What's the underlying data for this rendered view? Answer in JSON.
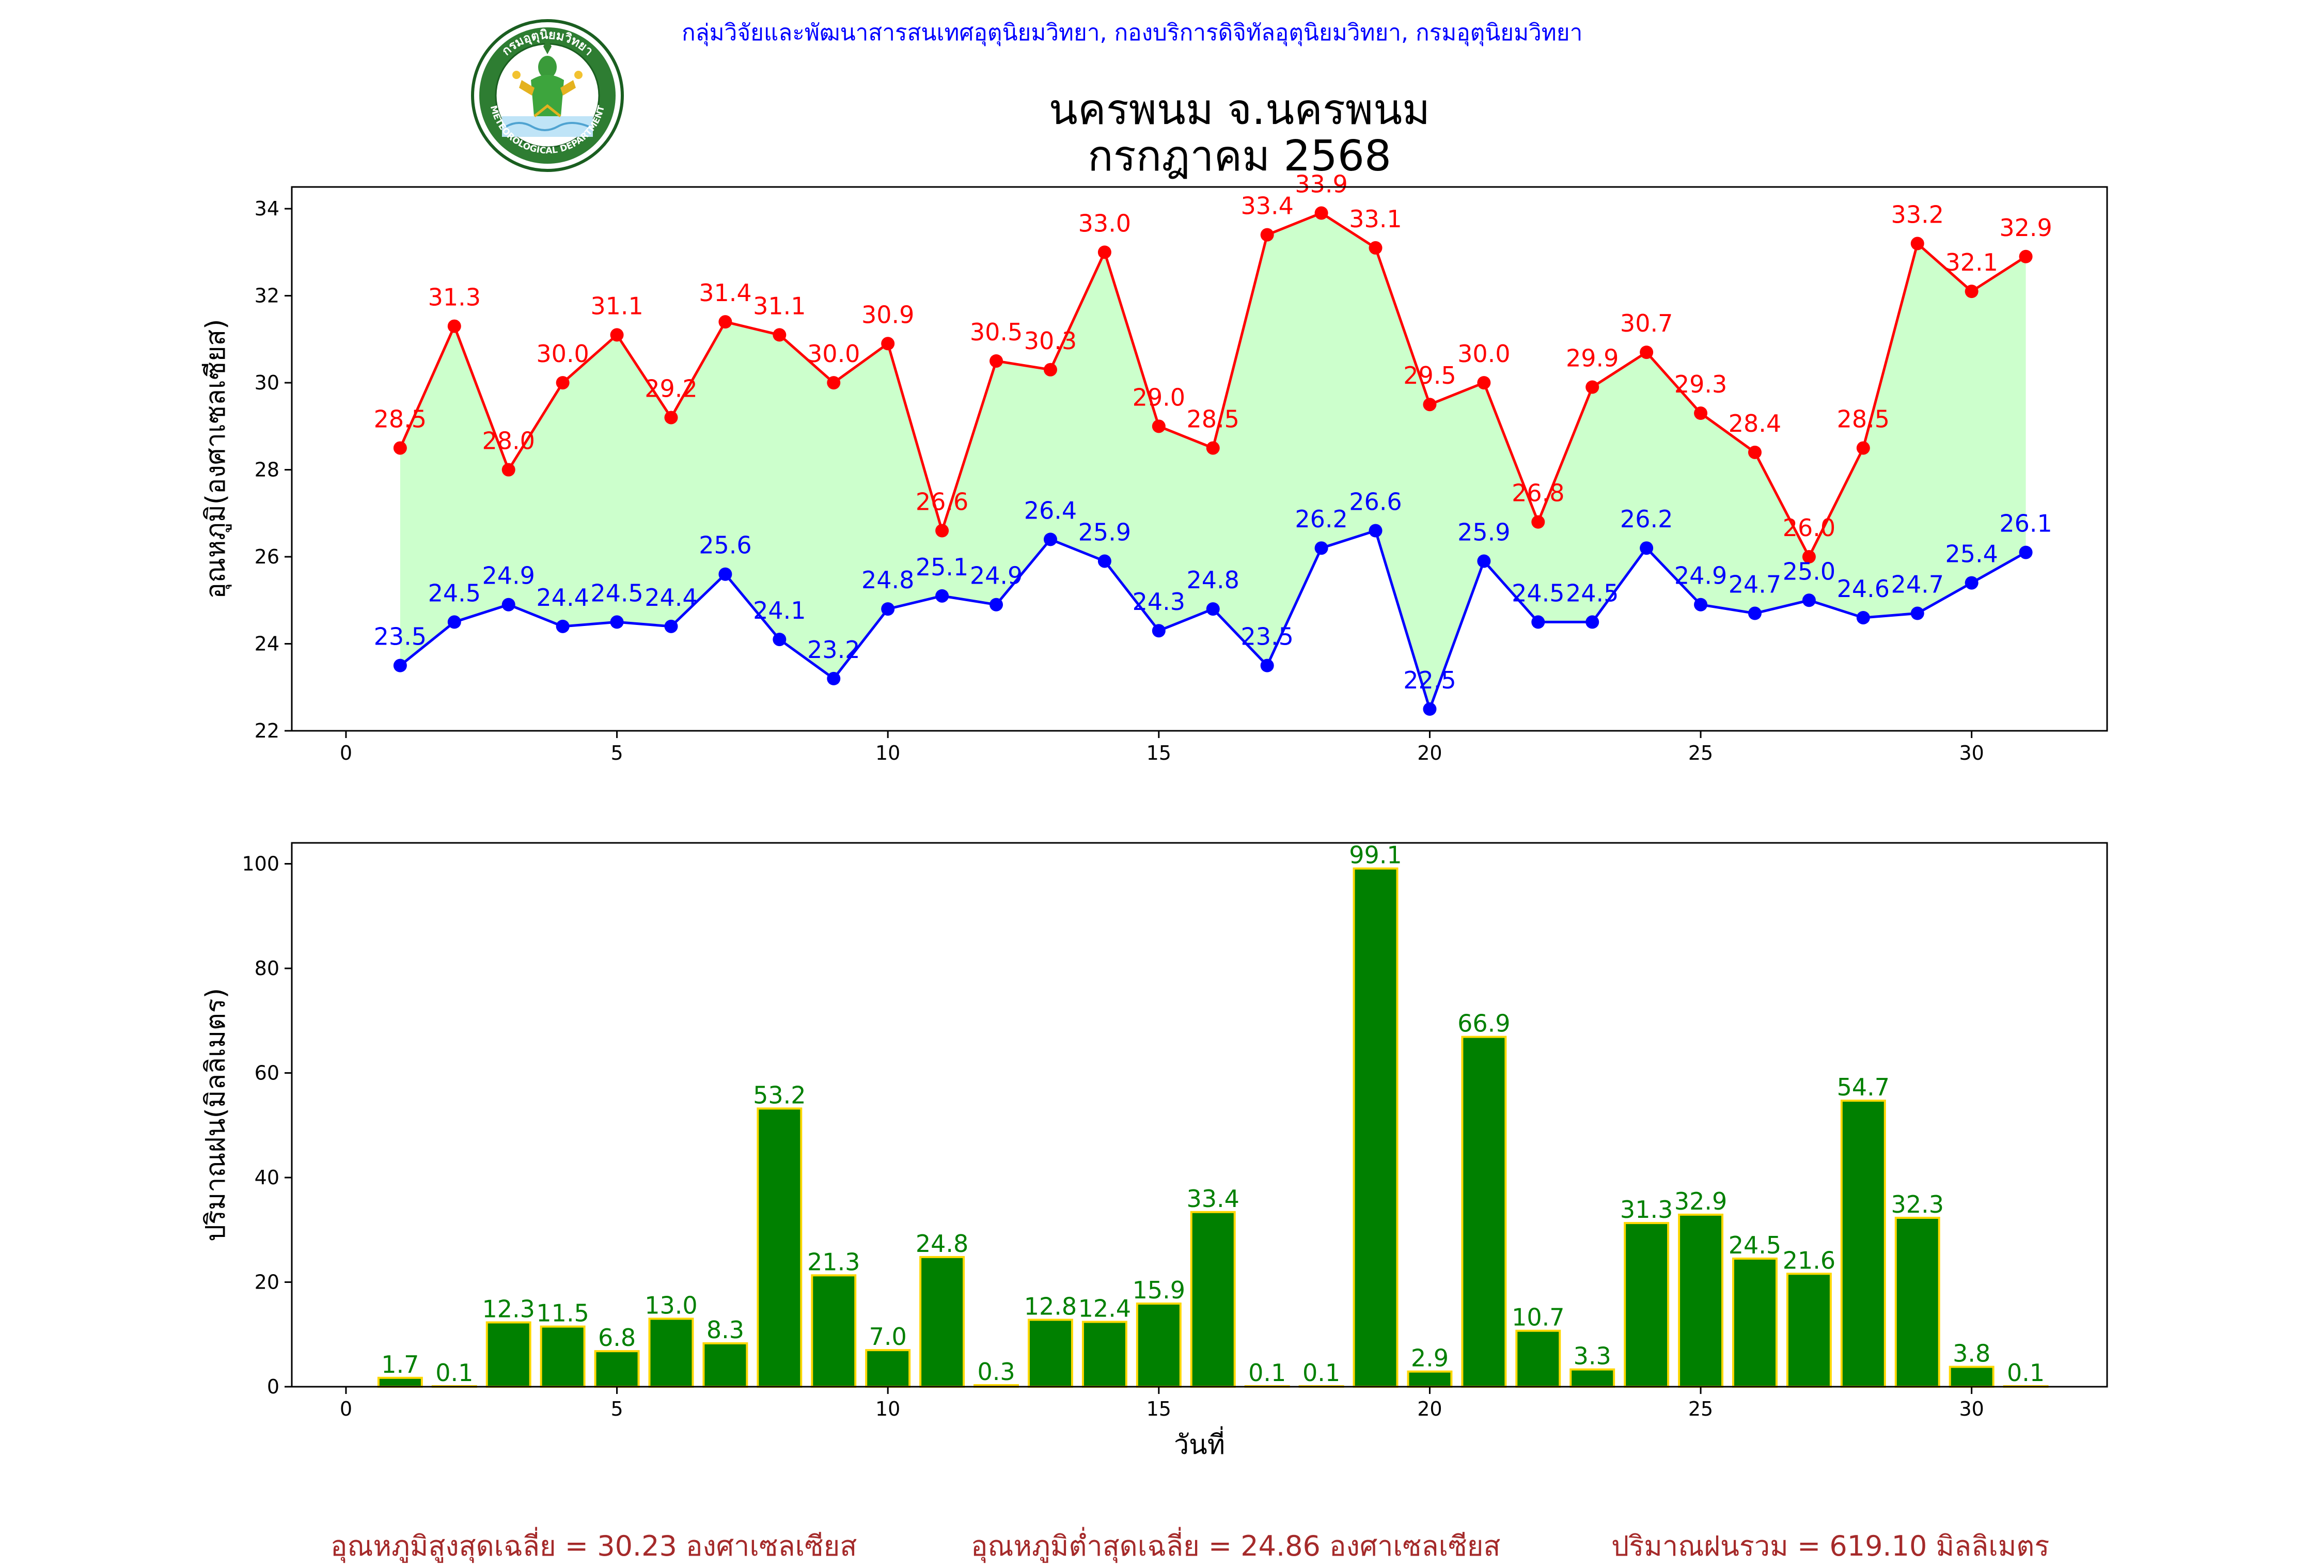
{
  "header": {
    "agency": "กลุ่มวิจัยและพัฒนาสารสนเทศอุตุนิยมวิทยา, กองบริการดิจิทัลอุตุนิยมวิทยา, กรมอุตุนิยมวิทยา",
    "logo_top_text": "กรมอุตุนิยมวิทยา",
    "logo_bottom_text": "METEOROLOGICAL DEPARTMENT"
  },
  "title": {
    "line1": "นครพนม จ.นครพนม",
    "line2": "กรกฎาคม 2568"
  },
  "colors": {
    "max": "#ff0000",
    "min": "#0000ff",
    "fill": "#ccffcc",
    "bar": "#008000",
    "bar_edge": "#ffd700",
    "bar_label": "#008000",
    "footer": "#a52a2a",
    "header": "#0000ff"
  },
  "chart_data": [
    {
      "type": "line",
      "ylabel": "อุณหภูมิ(องศาเซลเซียส)",
      "xlim": [
        -1,
        32.5
      ],
      "ylim": [
        22,
        34.5
      ],
      "xticks": [
        0,
        5,
        10,
        15,
        20,
        25,
        30
      ],
      "yticks": [
        22,
        24,
        26,
        28,
        30,
        32,
        34
      ],
      "x": [
        1,
        2,
        3,
        4,
        5,
        6,
        7,
        8,
        9,
        10,
        11,
        12,
        13,
        14,
        15,
        16,
        17,
        18,
        19,
        20,
        21,
        22,
        23,
        24,
        25,
        26,
        27,
        28,
        29,
        30,
        31
      ],
      "series": [
        {
          "key": "max",
          "values": [
            28.5,
            31.3,
            28.0,
            30.0,
            31.1,
            29.2,
            31.4,
            31.1,
            30.0,
            30.9,
            26.6,
            30.5,
            30.3,
            33.0,
            29.0,
            28.5,
            33.4,
            33.9,
            33.1,
            29.5,
            30.0,
            26.8,
            29.9,
            30.7,
            29.3,
            28.4,
            26.0,
            28.5,
            33.2,
            32.1,
            32.9
          ]
        },
        {
          "key": "min",
          "values": [
            23.5,
            24.5,
            24.9,
            24.4,
            24.5,
            24.4,
            25.6,
            24.1,
            23.2,
            24.8,
            25.1,
            24.9,
            26.4,
            25.9,
            24.3,
            24.8,
            23.5,
            26.2,
            26.6,
            22.5,
            25.9,
            24.5,
            24.5,
            26.2,
            24.9,
            24.7,
            25.0,
            24.6,
            24.7,
            25.4,
            26.1
          ]
        }
      ],
      "fill_between": true,
      "grid": false
    },
    {
      "type": "bar",
      "xlabel": "วันที่",
      "ylabel": "ปริมาณฝน(มิลลิเมตร)",
      "xlim": [
        -1,
        32.5
      ],
      "ylim": [
        0,
        104
      ],
      "xticks": [
        0,
        5,
        10,
        15,
        20,
        25,
        30
      ],
      "yticks": [
        0,
        20,
        40,
        60,
        80,
        100
      ],
      "categories": [
        1,
        2,
        3,
        4,
        5,
        6,
        7,
        8,
        9,
        10,
        11,
        12,
        13,
        14,
        15,
        16,
        17,
        18,
        19,
        20,
        21,
        22,
        23,
        24,
        25,
        26,
        27,
        28,
        29,
        30,
        31
      ],
      "values": [
        1.7,
        0.1,
        12.3,
        11.5,
        6.8,
        13.0,
        8.3,
        53.2,
        21.3,
        7.0,
        24.8,
        0.3,
        12.8,
        12.4,
        15.9,
        33.4,
        0.1,
        0.1,
        99.1,
        2.9,
        66.9,
        10.7,
        3.3,
        31.3,
        32.9,
        24.5,
        21.6,
        54.7,
        32.3,
        3.8,
        0.1
      ],
      "grid": false
    }
  ],
  "footer": {
    "avg_max": "อุณหภูมิสูงสุดเฉลี่ย = 30.23 องศาเซลเซียส",
    "avg_min": "อุณหภูมิต่ำสุดเฉลี่ย = 24.86 องศาเซลเซียส",
    "total_rain": "ปริมาณฝนรวม = 619.10 มิลลิเมตร"
  }
}
